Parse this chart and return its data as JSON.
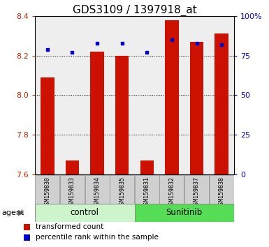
{
  "title": "GDS3109 / 1397918_at",
  "samples": [
    "GSM159830",
    "GSM159833",
    "GSM159834",
    "GSM159835",
    "GSM159831",
    "GSM159832",
    "GSM159837",
    "GSM159838"
  ],
  "red_values": [
    8.09,
    7.67,
    8.22,
    8.2,
    7.67,
    8.38,
    8.27,
    8.31
  ],
  "blue_values": [
    79,
    77,
    83,
    83,
    77,
    85,
    83,
    82
  ],
  "ylim_left": [
    7.6,
    8.4
  ],
  "ylim_right": [
    0,
    100
  ],
  "yticks_left": [
    7.6,
    7.8,
    8.0,
    8.2,
    8.4
  ],
  "yticks_right": [
    0,
    25,
    50,
    75,
    100
  ],
  "ytick_labels_right": [
    "0",
    "25",
    "50",
    "75",
    "100%"
  ],
  "bar_color": "#cc1100",
  "blue_color": "#0000cc",
  "baseline": 7.6,
  "bar_width": 0.55,
  "plot_bg_color": "#eeeeee",
  "grid_color": "#000000",
  "title_fontsize": 11,
  "tick_label_color_left": "#cc2200",
  "tick_label_color_right": "#0000cc",
  "legend_items": [
    "transformed count",
    "percentile rank within the sample"
  ],
  "agent_label": "agent",
  "group_label_row_color_control": "#ccf5cc",
  "group_label_row_color_sunitinib": "#55dd55",
  "sample_box_color": "#d0d0d0",
  "sample_box_edge": "#999999"
}
